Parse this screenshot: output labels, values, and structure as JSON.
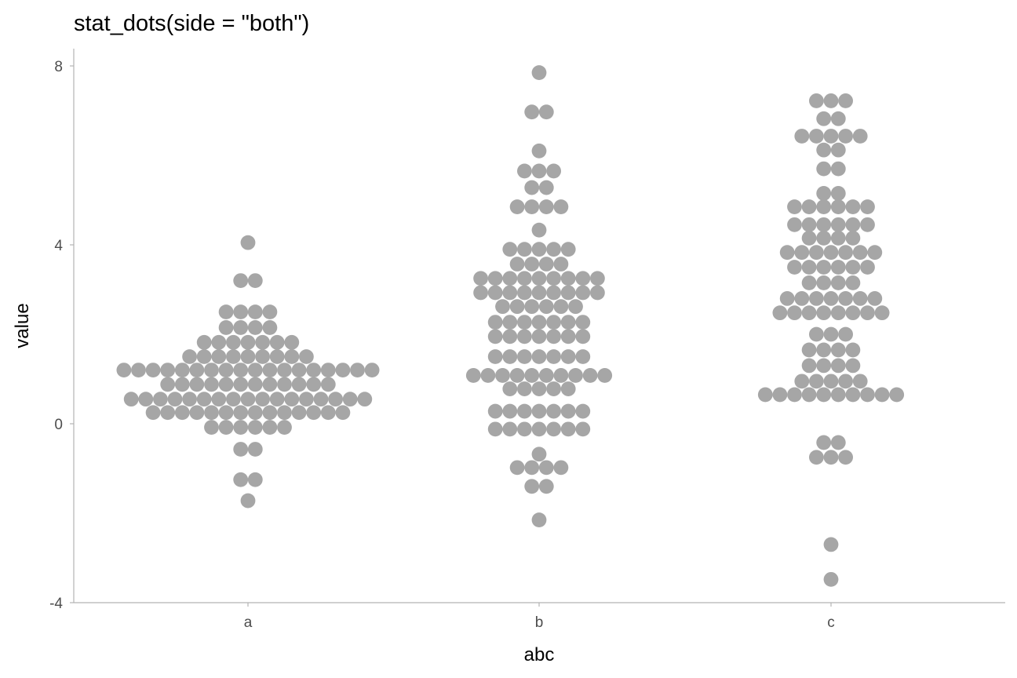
{
  "chart_data": {
    "type": "dotplot",
    "title": "stat_dots(side = \"both\")",
    "xlabel": "abc",
    "ylabel": "value",
    "ylim": [
      -4,
      8
    ],
    "y_ticks": [
      -4,
      0,
      4,
      8
    ],
    "categories": [
      "a",
      "b",
      "c"
    ],
    "dot_color": "#a6a6a6",
    "rows": {
      "a": [
        {
          "y": 4.05,
          "n": 1
        },
        {
          "y": 3.2,
          "n": 2
        },
        {
          "y": 2.5,
          "n": 4
        },
        {
          "y": 2.15,
          "n": 4
        },
        {
          "y": 1.82,
          "n": 7
        },
        {
          "y": 1.5,
          "n": 9
        },
        {
          "y": 1.2,
          "n": 18
        },
        {
          "y": 0.88,
          "n": 12
        },
        {
          "y": 0.55,
          "n": 17
        },
        {
          "y": 0.25,
          "n": 14
        },
        {
          "y": -0.08,
          "n": 6
        },
        {
          "y": -0.57,
          "n": 2
        },
        {
          "y": -1.25,
          "n": 2
        },
        {
          "y": -1.72,
          "n": 1
        }
      ],
      "b": [
        {
          "y": 7.85,
          "n": 1
        },
        {
          "y": 6.97,
          "n": 2
        },
        {
          "y": 6.1,
          "n": 1
        },
        {
          "y": 5.65,
          "n": 3
        },
        {
          "y": 5.28,
          "n": 2
        },
        {
          "y": 4.85,
          "n": 4
        },
        {
          "y": 4.33,
          "n": 1
        },
        {
          "y": 3.9,
          "n": 5
        },
        {
          "y": 3.57,
          "n": 4
        },
        {
          "y": 3.25,
          "n": 9
        },
        {
          "y": 2.93,
          "n": 9
        },
        {
          "y": 2.62,
          "n": 6
        },
        {
          "y": 2.27,
          "n": 7
        },
        {
          "y": 1.95,
          "n": 7
        },
        {
          "y": 1.5,
          "n": 7
        },
        {
          "y": 1.08,
          "n": 10
        },
        {
          "y": 0.78,
          "n": 5
        },
        {
          "y": 0.28,
          "n": 7
        },
        {
          "y": -0.12,
          "n": 7
        },
        {
          "y": -0.68,
          "n": 1
        },
        {
          "y": -0.98,
          "n": 4
        },
        {
          "y": -1.4,
          "n": 2
        },
        {
          "y": -2.15,
          "n": 1
        }
      ],
      "c": [
        {
          "y": 7.22,
          "n": 3
        },
        {
          "y": 6.82,
          "n": 2
        },
        {
          "y": 6.43,
          "n": 5
        },
        {
          "y": 6.12,
          "n": 2
        },
        {
          "y": 5.7,
          "n": 2
        },
        {
          "y": 5.15,
          "n": 2
        },
        {
          "y": 4.85,
          "n": 6
        },
        {
          "y": 4.45,
          "n": 6
        },
        {
          "y": 4.15,
          "n": 4
        },
        {
          "y": 3.83,
          "n": 7
        },
        {
          "y": 3.5,
          "n": 6
        },
        {
          "y": 3.15,
          "n": 4
        },
        {
          "y": 2.8,
          "n": 7
        },
        {
          "y": 2.48,
          "n": 8
        },
        {
          "y": 2.0,
          "n": 3
        },
        {
          "y": 1.65,
          "n": 4
        },
        {
          "y": 1.3,
          "n": 4
        },
        {
          "y": 0.95,
          "n": 5
        },
        {
          "y": 0.65,
          "n": 10
        },
        {
          "y": -0.42,
          "n": 2
        },
        {
          "y": -0.75,
          "n": 3
        },
        {
          "y": -2.7,
          "n": 1
        },
        {
          "y": -3.48,
          "n": 1
        }
      ]
    }
  }
}
